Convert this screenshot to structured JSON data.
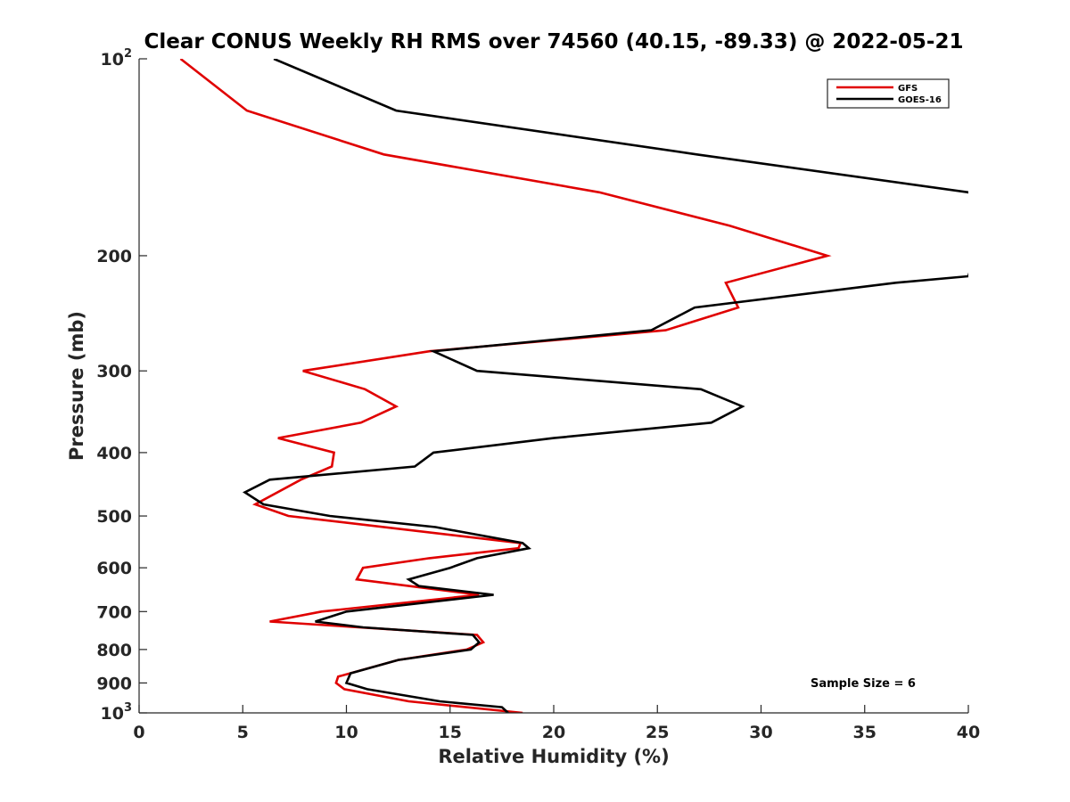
{
  "chart_data": {
    "type": "line",
    "title": "Clear CONUS Weekly RH RMS over 74560 (40.15, -89.33) @ 2022-05-21",
    "xlabel": "Relative Humidity (%)",
    "ylabel": "Pressure (mb)",
    "xlim": [
      0,
      40
    ],
    "ylim": [
      100,
      1000
    ],
    "y_scale": "log",
    "y_reversed": true,
    "x_ticks": [
      "0",
      "5",
      "10",
      "15",
      "20",
      "25",
      "30",
      "35",
      "40"
    ],
    "y_ticks": [
      {
        "value": 100,
        "label": "10",
        "sup": "2"
      },
      {
        "value": 200,
        "label": "200"
      },
      {
        "value": 300,
        "label": "300"
      },
      {
        "value": 400,
        "label": "400"
      },
      {
        "value": 500,
        "label": "500"
      },
      {
        "value": 600,
        "label": "600"
      },
      {
        "value": 700,
        "label": "700"
      },
      {
        "value": 800,
        "label": "800"
      },
      {
        "value": 900,
        "label": "900"
      },
      {
        "value": 1000,
        "label": "10",
        "sup": "3"
      }
    ],
    "grid": false,
    "legend_position": "top-right",
    "annotation": "Sample Size = 6",
    "series": [
      {
        "name": "GFS",
        "color": "#e00000",
        "points": [
          {
            "x": 2.0,
            "p": 100
          },
          {
            "x": 5.2,
            "p": 120
          },
          {
            "x": 11.8,
            "p": 140
          },
          {
            "x": 22.2,
            "p": 160
          },
          {
            "x": 28.5,
            "p": 180
          },
          {
            "x": 33.2,
            "p": 200
          },
          {
            "x": 28.3,
            "p": 220
          },
          {
            "x": 28.9,
            "p": 240
          },
          {
            "x": 25.4,
            "p": 260
          },
          {
            "x": 14.0,
            "p": 280
          },
          {
            "x": 7.9,
            "p": 300
          },
          {
            "x": 10.9,
            "p": 320
          },
          {
            "x": 12.4,
            "p": 340
          },
          {
            "x": 10.7,
            "p": 360
          },
          {
            "x": 6.7,
            "p": 380
          },
          {
            "x": 9.4,
            "p": 400
          },
          {
            "x": 9.3,
            "p": 420
          },
          {
            "x": 7.8,
            "p": 440
          },
          {
            "x": 5.6,
            "p": 480
          },
          {
            "x": 7.2,
            "p": 500
          },
          {
            "x": 18.4,
            "p": 550
          },
          {
            "x": 18.3,
            "p": 560
          },
          {
            "x": 14.0,
            "p": 580
          },
          {
            "x": 10.8,
            "p": 600
          },
          {
            "x": 10.5,
            "p": 625
          },
          {
            "x": 16.4,
            "p": 660
          },
          {
            "x": 8.8,
            "p": 700
          },
          {
            "x": 6.3,
            "p": 725
          },
          {
            "x": 16.3,
            "p": 760
          },
          {
            "x": 16.6,
            "p": 780
          },
          {
            "x": 15.8,
            "p": 800
          },
          {
            "x": 12.5,
            "p": 830
          },
          {
            "x": 9.6,
            "p": 880
          },
          {
            "x": 9.5,
            "p": 900
          },
          {
            "x": 9.9,
            "p": 920
          },
          {
            "x": 13.0,
            "p": 960
          },
          {
            "x": 18.5,
            "p": 1000
          }
        ]
      },
      {
        "name": "GOES-16",
        "color": "#000000",
        "points": [
          {
            "x": 6.5,
            "p": 100
          },
          {
            "x": 12.4,
            "p": 120
          },
          {
            "x": 26.9,
            "p": 140
          },
          {
            "x": 40.0,
            "p": 160
          },
          {
            "x": 41.0,
            "p": 170
          },
          {
            "x": 40.0,
            "p": 215
          },
          {
            "x": 36.5,
            "p": 220
          },
          {
            "x": 26.8,
            "p": 240
          },
          {
            "x": 24.7,
            "p": 260
          },
          {
            "x": 14.2,
            "p": 280
          },
          {
            "x": 16.3,
            "p": 300
          },
          {
            "x": 27.1,
            "p": 320
          },
          {
            "x": 29.1,
            "p": 340
          },
          {
            "x": 27.6,
            "p": 360
          },
          {
            "x": 20.0,
            "p": 380
          },
          {
            "x": 14.2,
            "p": 400
          },
          {
            "x": 13.3,
            "p": 420
          },
          {
            "x": 6.3,
            "p": 440
          },
          {
            "x": 5.1,
            "p": 460
          },
          {
            "x": 6.0,
            "p": 480
          },
          {
            "x": 9.2,
            "p": 500
          },
          {
            "x": 14.3,
            "p": 520
          },
          {
            "x": 18.5,
            "p": 550
          },
          {
            "x": 18.8,
            "p": 560
          },
          {
            "x": 16.3,
            "p": 580
          },
          {
            "x": 15.0,
            "p": 600
          },
          {
            "x": 13.0,
            "p": 625
          },
          {
            "x": 13.5,
            "p": 640
          },
          {
            "x": 17.1,
            "p": 660
          },
          {
            "x": 10.0,
            "p": 700
          },
          {
            "x": 8.5,
            "p": 725
          },
          {
            "x": 10.8,
            "p": 740
          },
          {
            "x": 16.1,
            "p": 760
          },
          {
            "x": 16.4,
            "p": 780
          },
          {
            "x": 16.0,
            "p": 800
          },
          {
            "x": 12.5,
            "p": 830
          },
          {
            "x": 10.2,
            "p": 870
          },
          {
            "x": 10.0,
            "p": 900
          },
          {
            "x": 11.0,
            "p": 920
          },
          {
            "x": 14.5,
            "p": 960
          },
          {
            "x": 17.5,
            "p": 980
          },
          {
            "x": 17.8,
            "p": 1000
          }
        ]
      }
    ]
  }
}
